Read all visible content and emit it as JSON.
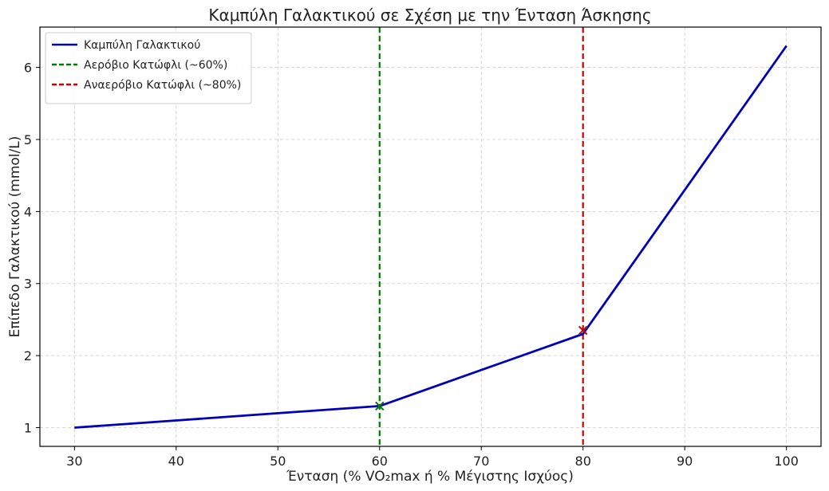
{
  "chart_data": {
    "type": "line",
    "title": "Καμπύλη Γαλακτικού σε Σχέση με την Ένταση Άσκησης",
    "xlabel": "Ένταση (% VO₂max ή % Μέγιστης Ισχύος)",
    "ylabel": "Επίπεδο Γαλακτικού (mmol/L)",
    "xlim": [
      26.6,
      103.4
    ],
    "ylim": [
      0.74,
      6.56
    ],
    "x_ticks": [
      30,
      40,
      50,
      60,
      70,
      80,
      90,
      100
    ],
    "y_ticks": [
      1,
      2,
      3,
      4,
      5,
      6
    ],
    "grid": true,
    "legend_position": "top-left",
    "series": [
      {
        "name": "Καμπύλη Γαλακτικού",
        "color": "#0000bb",
        "style": "solid",
        "x": [
          30,
          40,
          50,
          60,
          70,
          80,
          90,
          100
        ],
        "y": [
          1.0,
          1.1,
          1.2,
          1.3,
          1.8,
          2.3,
          4.3,
          6.3
        ]
      }
    ],
    "vlines": [
      {
        "name": "Αερόβιο Κατώφλι (~60%)",
        "x": 60,
        "color": "#007a00"
      },
      {
        "name": "Αναερόβιο Κατώφλι (~80%)",
        "x": 80,
        "color": "#cc0000"
      }
    ],
    "markers": [
      {
        "x": 60,
        "y": 1.3,
        "symbol": "x",
        "color": "#007a00"
      },
      {
        "x": 80,
        "y": 2.35,
        "symbol": "x",
        "color": "#cc0000"
      }
    ]
  }
}
